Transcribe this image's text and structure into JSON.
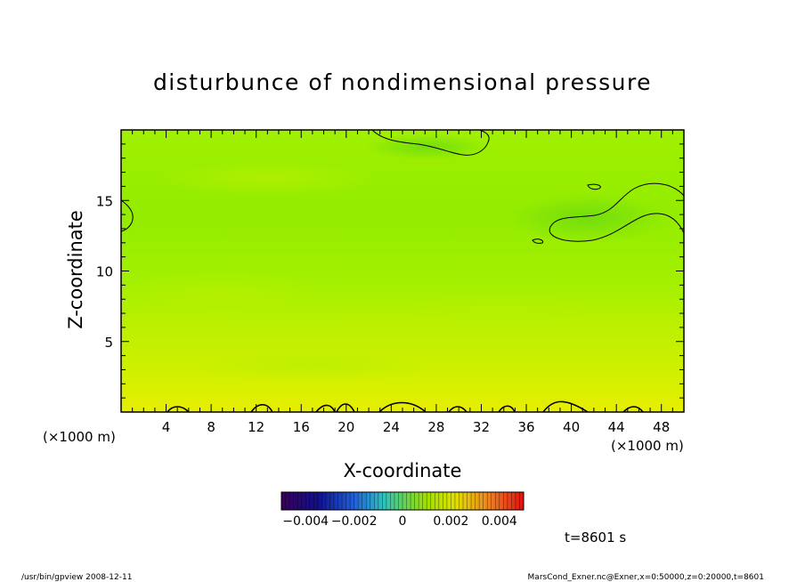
{
  "chart_data": {
    "type": "heatmap",
    "title": "disturbunce of nondimensional pressure",
    "xlabel": "X-coordinate",
    "ylabel": "Z-coordinate",
    "x_unit_left": "(×1000 m)",
    "x_unit_right": "(×1000 m)",
    "x_ticks": [
      "4",
      "8",
      "12",
      "16",
      "20",
      "24",
      "28",
      "32",
      "36",
      "40",
      "44",
      "48"
    ],
    "x_tick_values": [
      4,
      8,
      12,
      16,
      20,
      24,
      28,
      32,
      36,
      40,
      44,
      48
    ],
    "y_ticks": [
      "5",
      "10",
      "15"
    ],
    "y_tick_values": [
      5,
      10,
      15
    ],
    "xlim": [
      0,
      50
    ],
    "ylim": [
      0,
      20
    ],
    "colorbar": {
      "min": -0.005,
      "max": 0.005,
      "tick_labels": [
        "−0.004",
        "−0.002",
        "0",
        "0.002",
        "0.004"
      ],
      "tick_values": [
        -0.004,
        -0.002,
        0,
        0.002,
        0.004
      ]
    },
    "time_label": "t=8601 s",
    "colors": {
      "dominant": "#a0f000",
      "low_layer": "#dcef00",
      "high_region": "#7fe000"
    }
  },
  "footer": {
    "left": "/usr/bin/gpview   2008-12-11",
    "right": "MarsCond_Exner.nc@Exner,x=0:50000,z=0:20000,t=8601"
  }
}
